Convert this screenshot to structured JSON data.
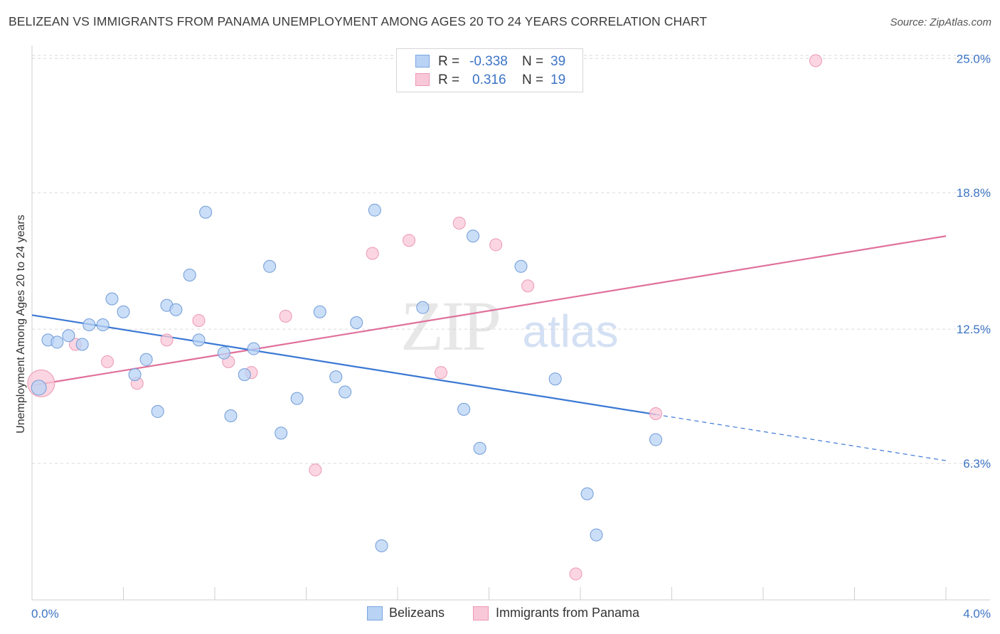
{
  "header": {
    "title": "BELIZEAN VS IMMIGRANTS FROM PANAMA UNEMPLOYMENT AMONG AGES 20 TO 24 YEARS CORRELATION CHART",
    "source": "Source: ZipAtlas.com"
  },
  "watermark": {
    "zip": "ZIP",
    "atlas": "atlas"
  },
  "legend": {
    "r_label": "R =",
    "n_label": "N =",
    "series": [
      {
        "name": "Belizeans",
        "r": "-0.338",
        "n": "39",
        "fill": "#b9d3f5",
        "stroke": "#7aa6e0"
      },
      {
        "name": "Immigrants from Panama",
        "r": "0.316",
        "n": "19",
        "fill": "#f9c8d8",
        "stroke": "#ec97b2"
      }
    ]
  },
  "chart_data": {
    "type": "scatter",
    "title": "BELIZEAN VS IMMIGRANTS FROM PANAMA UNEMPLOYMENT AMONG AGES 20 TO 24 YEARS CORRELATION CHART",
    "xlabel": "",
    "ylabel": "Unemployment Among Ages 20 to 24 years",
    "xlim": [
      0.0,
      4.0
    ],
    "ylim": [
      0.0,
      25.6
    ],
    "x_tick_labels": [
      "0.0%",
      "4.0%"
    ],
    "y_ticks": [
      6.3,
      12.5,
      18.8,
      25.0
    ],
    "y_tick_labels": [
      "6.3%",
      "12.5%",
      "18.8%",
      "25.0%"
    ],
    "grid": true,
    "colors": {
      "blue": "#3a78d4",
      "pink": "#e0709a",
      "blue_fill": "#b9d3f5",
      "pink_fill": "#f9c8d8"
    },
    "series": [
      {
        "name": "Belizeans",
        "r": -0.338,
        "n": 39,
        "points": [
          [
            0.03,
            9.8
          ],
          [
            0.07,
            12.0
          ],
          [
            0.11,
            11.9
          ],
          [
            0.16,
            12.2
          ],
          [
            0.22,
            11.8
          ],
          [
            0.25,
            12.7
          ],
          [
            0.31,
            12.7
          ],
          [
            0.35,
            13.9
          ],
          [
            0.4,
            13.3
          ],
          [
            0.45,
            10.4
          ],
          [
            0.5,
            11.1
          ],
          [
            0.55,
            8.7
          ],
          [
            0.59,
            13.6
          ],
          [
            0.63,
            13.4
          ],
          [
            0.69,
            15.0
          ],
          [
            0.73,
            12.0
          ],
          [
            0.76,
            17.9
          ],
          [
            0.84,
            11.4
          ],
          [
            0.87,
            8.5
          ],
          [
            0.93,
            10.4
          ],
          [
            0.97,
            11.6
          ],
          [
            1.04,
            15.4
          ],
          [
            1.09,
            7.7
          ],
          [
            1.16,
            9.3
          ],
          [
            1.26,
            13.3
          ],
          [
            1.33,
            10.3
          ],
          [
            1.37,
            9.6
          ],
          [
            1.42,
            12.8
          ],
          [
            1.5,
            18.0
          ],
          [
            1.53,
            2.5
          ],
          [
            1.71,
            13.5
          ],
          [
            1.89,
            8.8
          ],
          [
            1.93,
            16.8
          ],
          [
            1.96,
            7.0
          ],
          [
            2.14,
            15.4
          ],
          [
            2.29,
            10.2
          ],
          [
            2.43,
            4.9
          ],
          [
            2.47,
            3.0
          ],
          [
            2.73,
            7.4
          ]
        ],
        "trend": {
          "x0": 0.0,
          "y0": 13.15,
          "x1": 2.73,
          "y1": 8.56,
          "dash_to_x": 4.0,
          "dash_to_y": 6.43
        }
      },
      {
        "name": "Immigrants from Panama",
        "r": 0.316,
        "n": 19,
        "points": [
          [
            0.04,
            10.0
          ],
          [
            0.19,
            11.8
          ],
          [
            0.33,
            11.0
          ],
          [
            0.46,
            10.0
          ],
          [
            0.59,
            12.0
          ],
          [
            0.73,
            12.9
          ],
          [
            0.86,
            11.0
          ],
          [
            0.96,
            10.5
          ],
          [
            1.11,
            13.1
          ],
          [
            1.24,
            6.0
          ],
          [
            1.49,
            16.0
          ],
          [
            1.65,
            16.6
          ],
          [
            1.79,
            10.5
          ],
          [
            1.87,
            17.4
          ],
          [
            2.03,
            16.4
          ],
          [
            2.17,
            14.5
          ],
          [
            2.38,
            1.2
          ],
          [
            2.73,
            8.6
          ],
          [
            3.43,
            24.9
          ]
        ],
        "trend": {
          "x0": 0.0,
          "y0": 9.9,
          "x1": 4.0,
          "y1": 16.8
        }
      }
    ]
  }
}
